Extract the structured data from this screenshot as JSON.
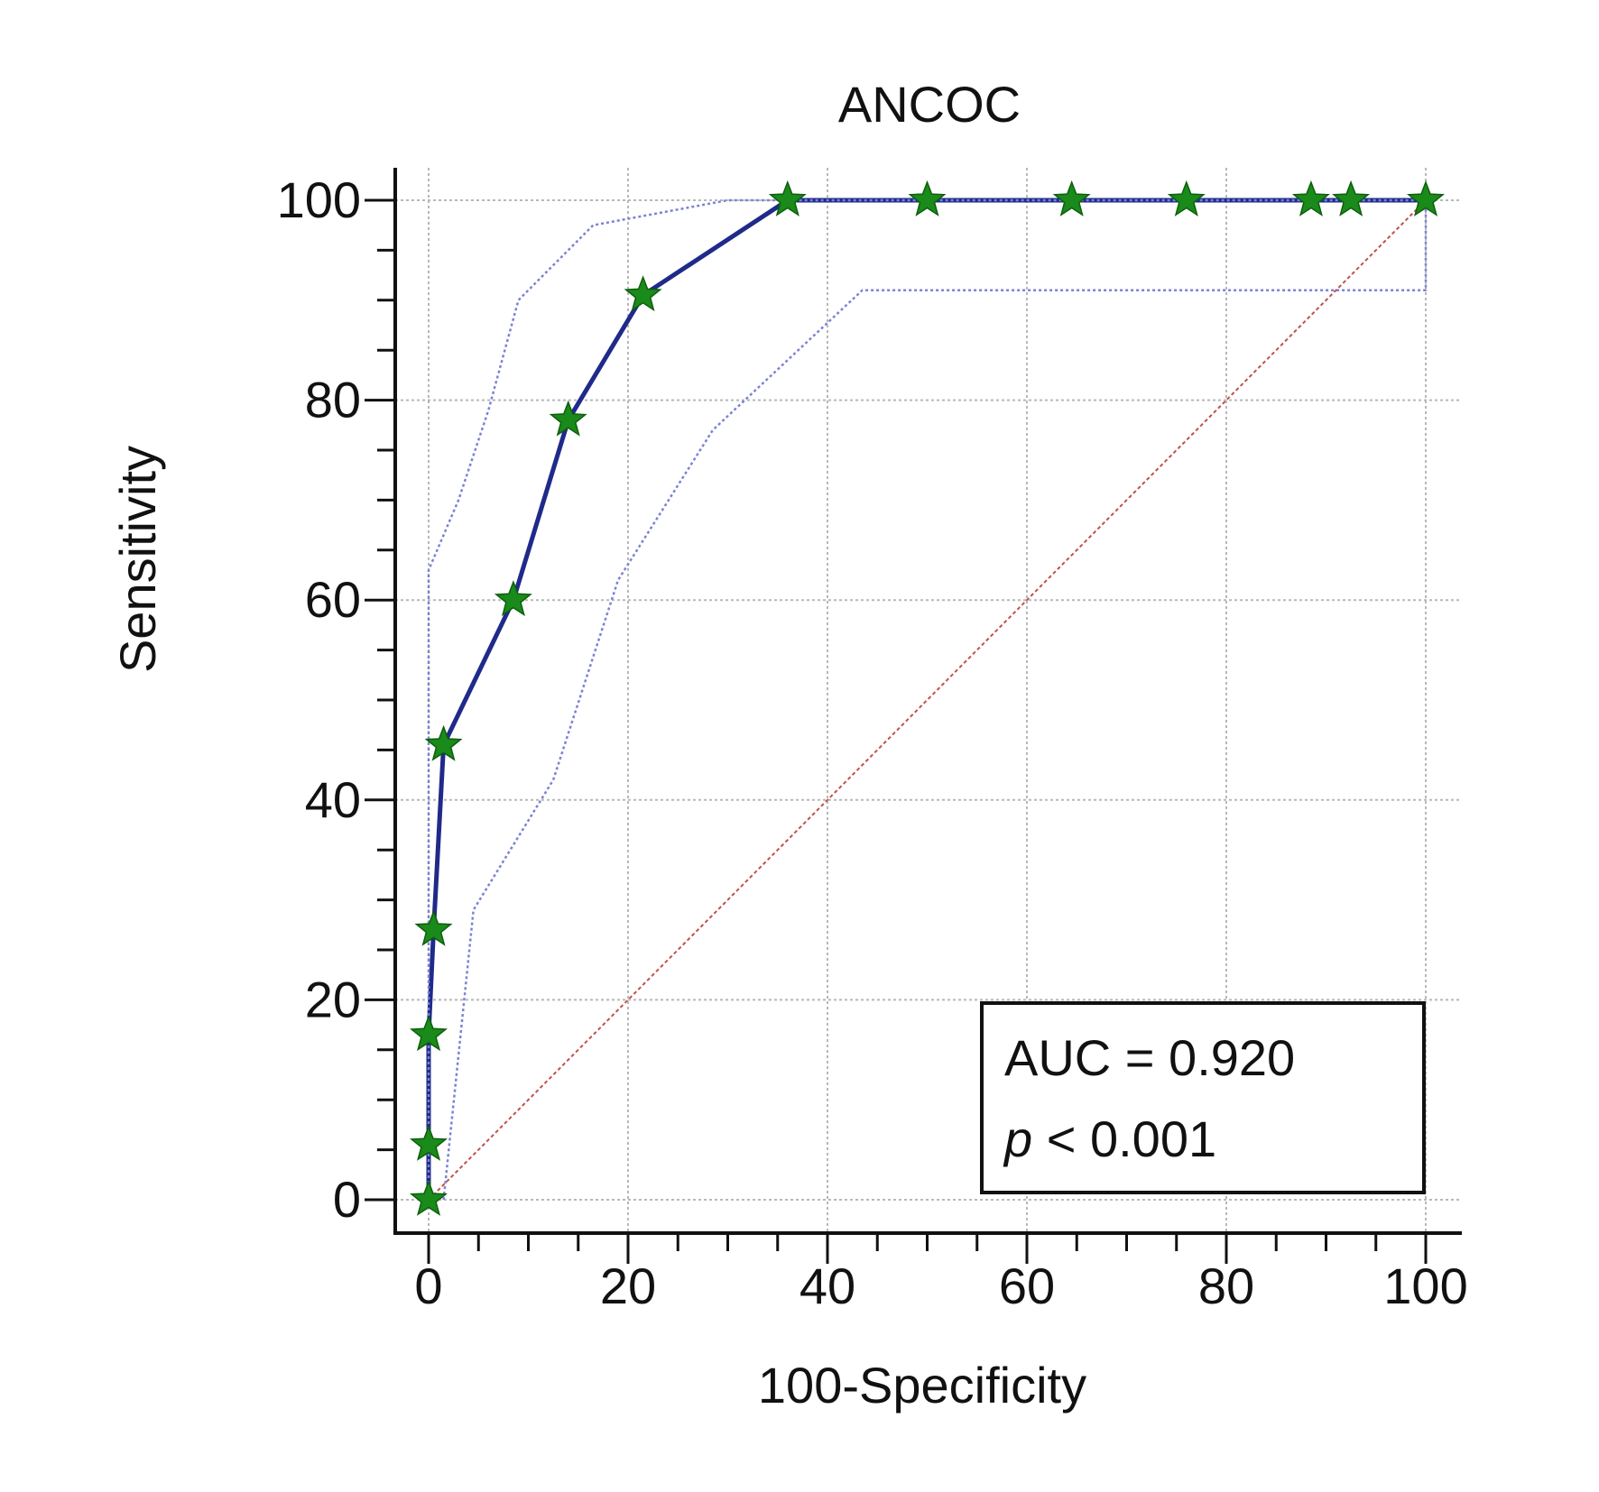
{
  "chart_data": {
    "type": "line",
    "title": "ANCOC",
    "xlabel": "100-Specificity",
    "ylabel": "Sensitivity",
    "xlim": [
      0,
      100
    ],
    "ylim": [
      0,
      100
    ],
    "xticks": [
      0,
      20,
      40,
      60,
      80,
      100
    ],
    "yticks": [
      0,
      20,
      40,
      60,
      80,
      100
    ],
    "grid": true,
    "series": [
      {
        "role": "roc",
        "color": "#1f2a8a",
        "marker": "star",
        "marker_fill": "#1a8a1a",
        "points": [
          [
            0,
            0
          ],
          [
            0,
            5.5
          ],
          [
            0,
            16.5
          ],
          [
            0.5,
            27
          ],
          [
            1.5,
            45.5
          ],
          [
            8.5,
            60
          ],
          [
            14,
            78
          ],
          [
            21.5,
            90.5
          ],
          [
            36,
            100
          ],
          [
            50,
            100
          ],
          [
            64.5,
            100
          ],
          [
            76,
            100
          ],
          [
            88.5,
            100
          ],
          [
            92.5,
            100
          ],
          [
            100,
            100
          ]
        ]
      },
      {
        "role": "ci-upper",
        "color": "#7b83d4",
        "style": "dotted",
        "points": [
          [
            0,
            0
          ],
          [
            0,
            63
          ],
          [
            3,
            70
          ],
          [
            6,
            79
          ],
          [
            9,
            90
          ],
          [
            16.5,
            97.5
          ],
          [
            30,
            100
          ],
          [
            100,
            100
          ]
        ]
      },
      {
        "role": "ci-lower",
        "color": "#7b83d4",
        "style": "dotted",
        "points": [
          [
            1.5,
            0
          ],
          [
            4.5,
            29
          ],
          [
            12.5,
            42
          ],
          [
            19,
            62
          ],
          [
            28.5,
            77
          ],
          [
            43.5,
            91
          ],
          [
            100,
            91
          ],
          [
            100,
            100
          ]
        ]
      },
      {
        "role": "reference",
        "color": "#c05050",
        "style": "dotted",
        "points": [
          [
            0,
            0
          ],
          [
            100,
            100
          ]
        ]
      }
    ],
    "annotation": {
      "auc_line": "AUC = 0.920",
      "p_symbol": "p",
      "p_rest": " < 0.001"
    }
  }
}
